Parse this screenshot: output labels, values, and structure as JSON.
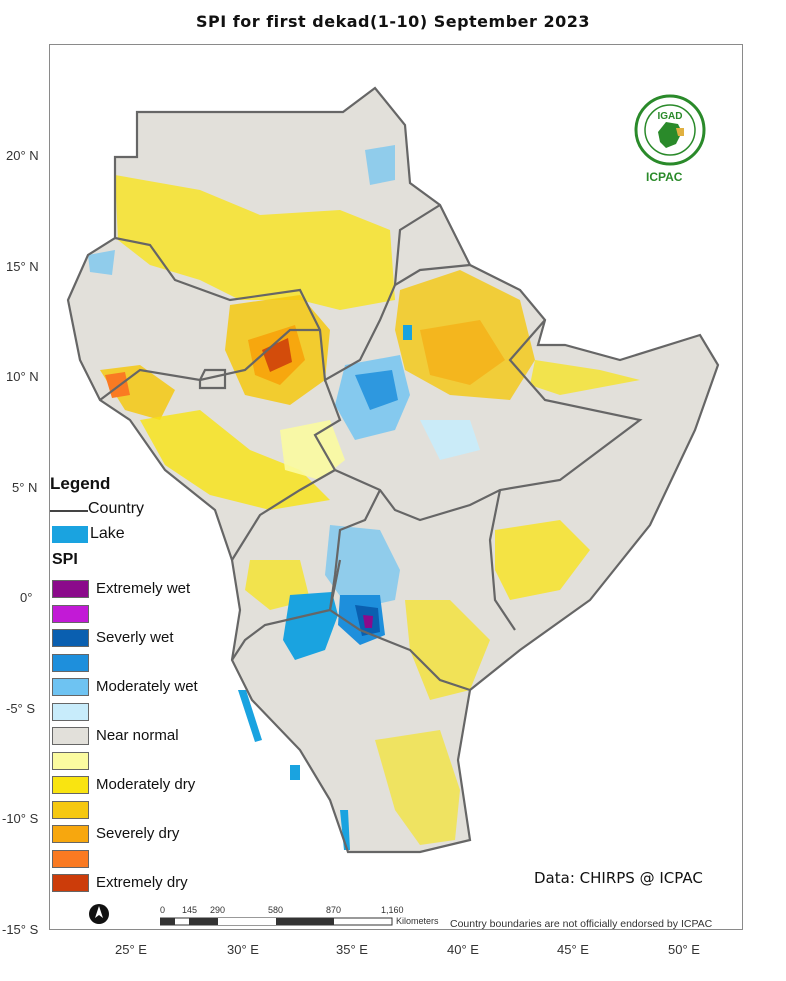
{
  "title": "SPI   for   first dekad(1-10)  September  2023",
  "latitude_labels": [
    "20° N",
    "15° N",
    "10° N",
    "5° N",
    "0°",
    "-5° S",
    "-10° S",
    "-15° S"
  ],
  "longitude_labels": [
    "25° E",
    "30° E",
    "35° E",
    "40° E",
    "45° E",
    "50° E"
  ],
  "legend": {
    "heading": "Legend",
    "country_label": "Country",
    "lake_label": "Lake",
    "spi_heading": "SPI",
    "classes": [
      {
        "label": "Extremely wet",
        "color": "#8b0a8b"
      },
      {
        "label": "",
        "color": "#c21ad6"
      },
      {
        "label": "Severly wet",
        "color": "#0a5fb0"
      },
      {
        "label": "",
        "color": "#1e8fdc"
      },
      {
        "label": "Moderately wet",
        "color": "#6ec3f2"
      },
      {
        "label": "",
        "color": "#c8ecfb"
      },
      {
        "label": "Near normal",
        "color": "#e2e0da"
      },
      {
        "label": "",
        "color": "#fbfba0"
      },
      {
        "label": "Moderately dry",
        "color": "#f9e411"
      },
      {
        "label": "",
        "color": "#f5c810"
      },
      {
        "label": "Severely dry",
        "color": "#f7a70e"
      },
      {
        "label": "",
        "color": "#fa7a22"
      },
      {
        "label": "Extremely dry",
        "color": "#cc3c0a"
      }
    ]
  },
  "scale_bar": {
    "ticks": [
      "0",
      "145",
      "290",
      "580",
      "870",
      "1,160"
    ],
    "unit": "Kilometers"
  },
  "credit": "Data: CHIRPS @ ICPAC",
  "disclaimer": "Country boundaries are not officially endorsed by ICPAC",
  "logo": {
    "top_text": "IGAD",
    "bottom_text": "ICPAC"
  },
  "colors": {
    "lake": "#1aa3e0",
    "border": "#666666",
    "background": "#ffffff"
  }
}
